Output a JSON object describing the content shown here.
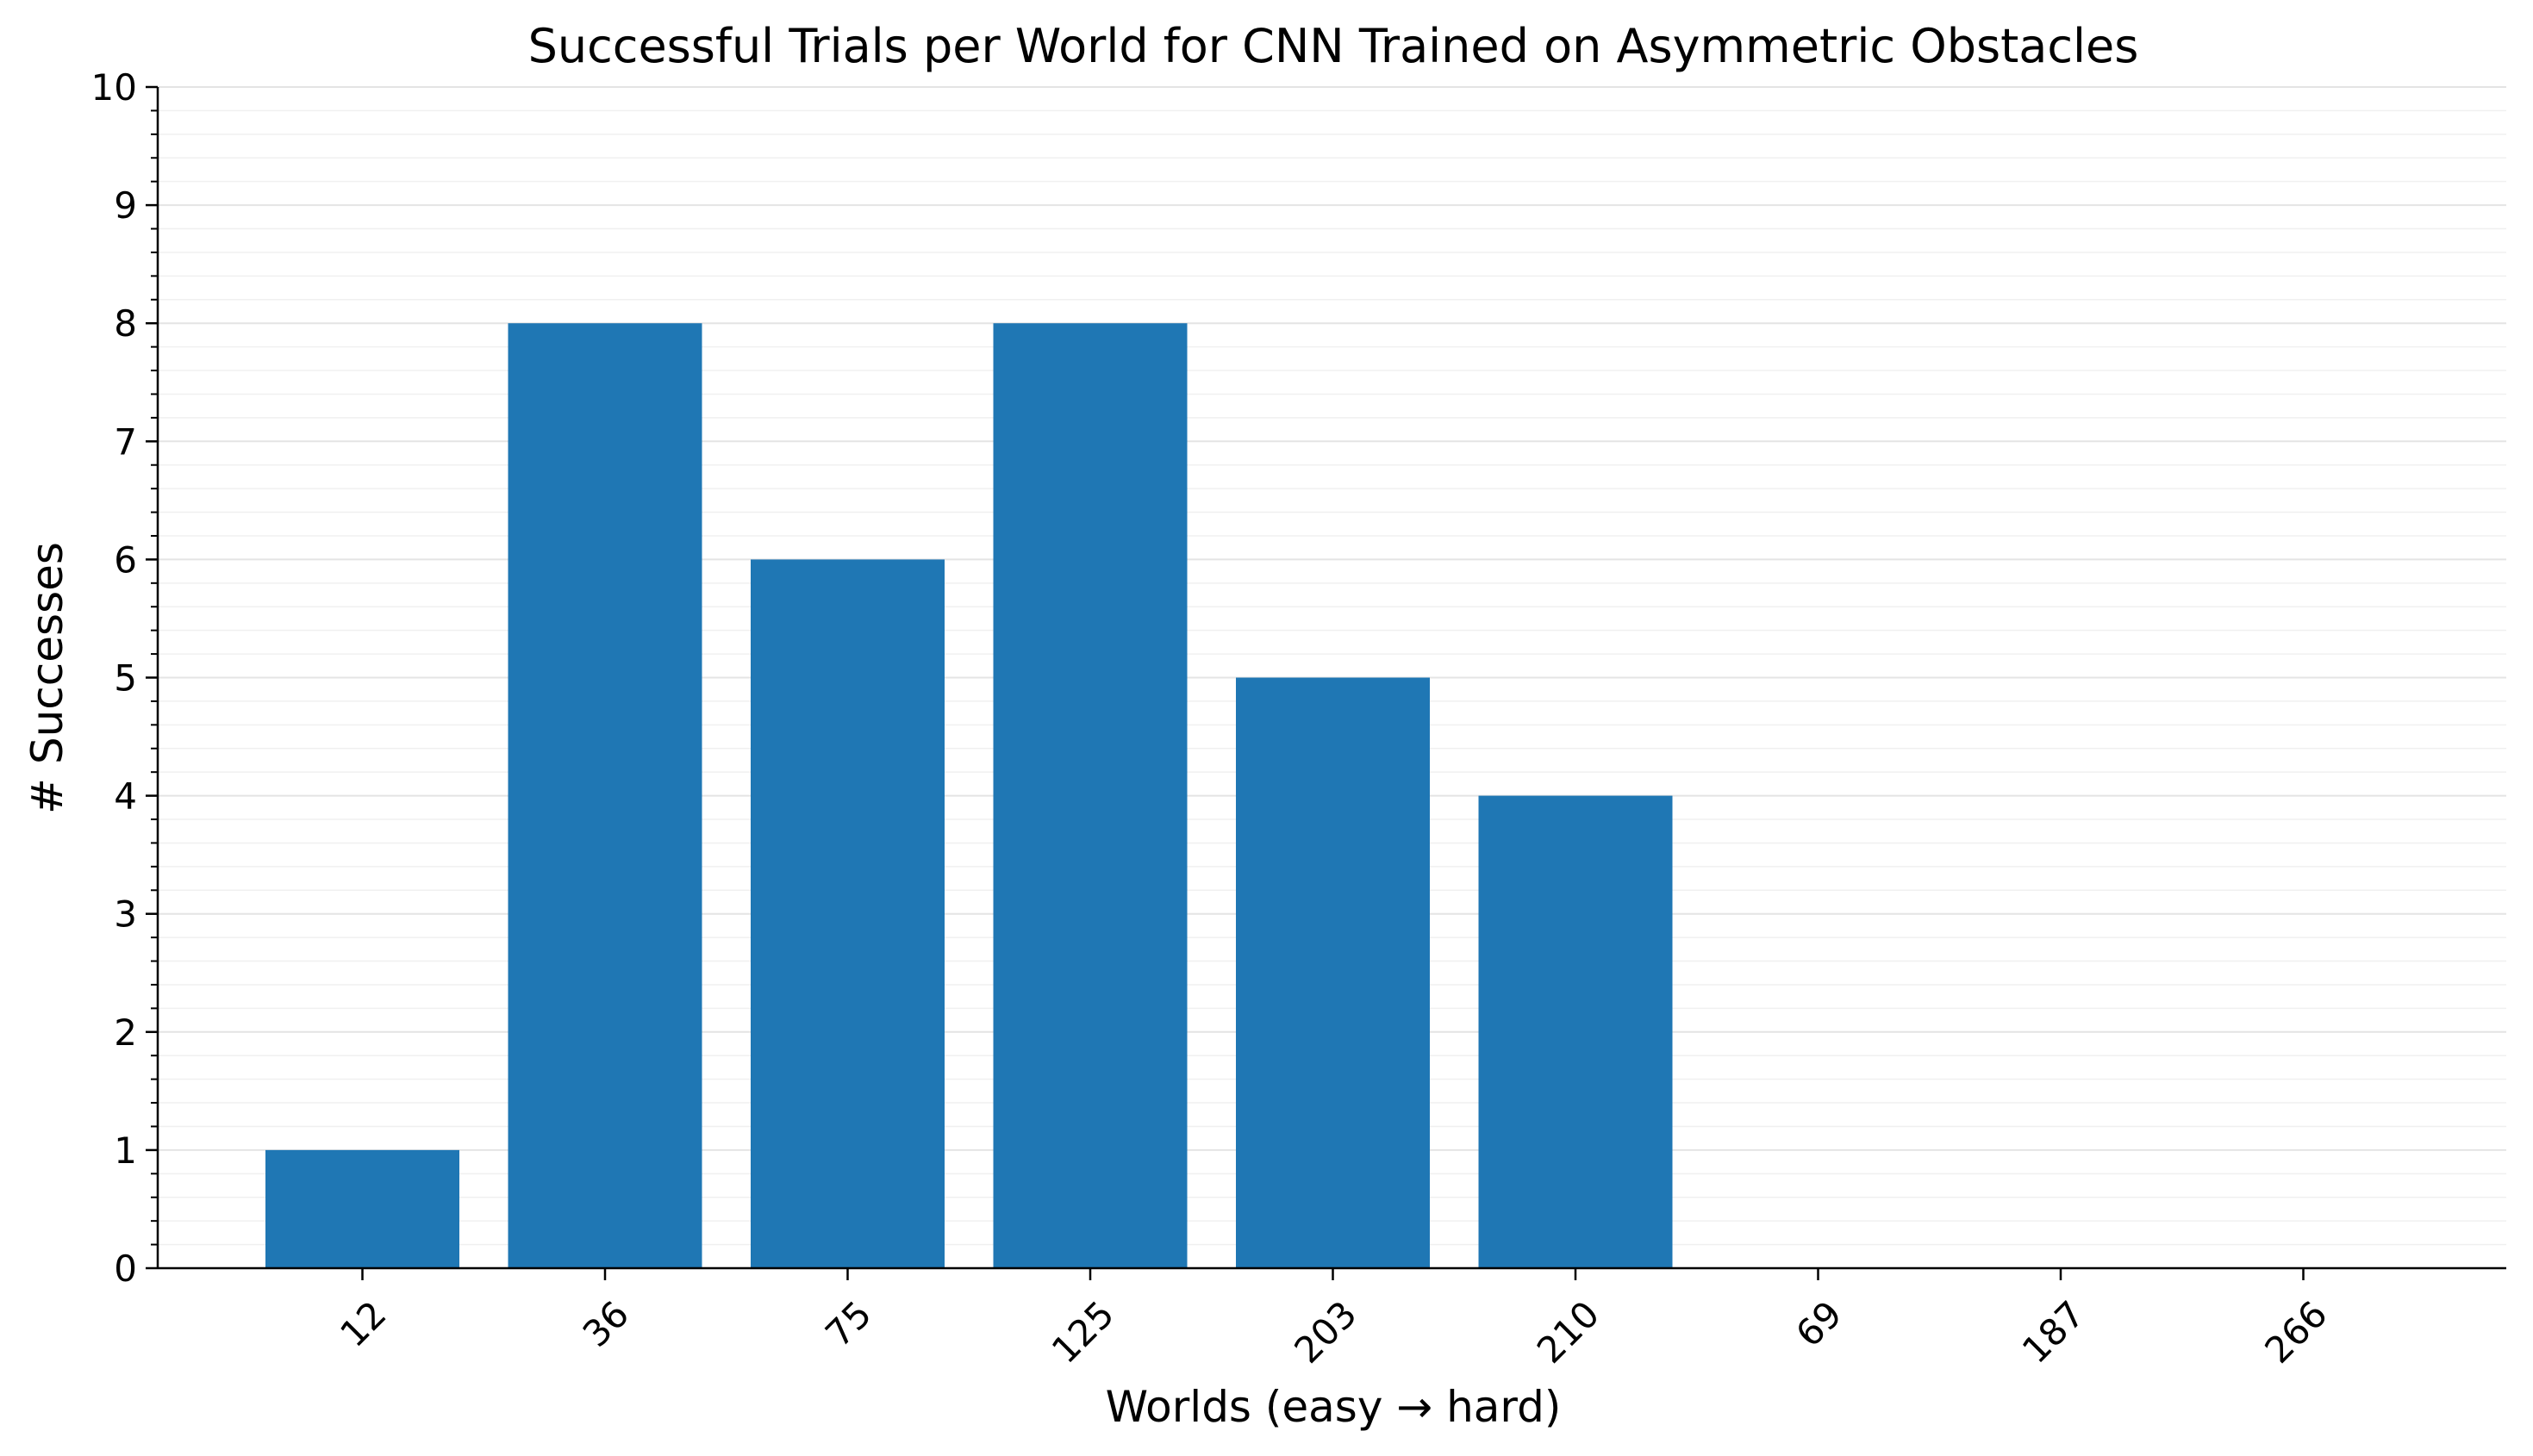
{
  "chart_data": {
    "type": "bar",
    "title": "Successful Trials per World for CNN Trained on Asymmetric Obstacles",
    "xlabel": "Worlds (easy → hard)",
    "ylabel": "# Successes",
    "categories": [
      "12",
      "36",
      "75",
      "125",
      "203",
      "210",
      "69",
      "187",
      "266"
    ],
    "values": [
      1,
      8,
      6,
      8,
      5,
      4,
      0,
      0,
      0
    ],
    "ylim": [
      0,
      10
    ],
    "yticks": [
      "0",
      "1",
      "2",
      "3",
      "4",
      "5",
      "6",
      "7",
      "8",
      "9",
      "10"
    ],
    "bar_color": "#1f77b4",
    "grid": true,
    "legend": "none"
  }
}
